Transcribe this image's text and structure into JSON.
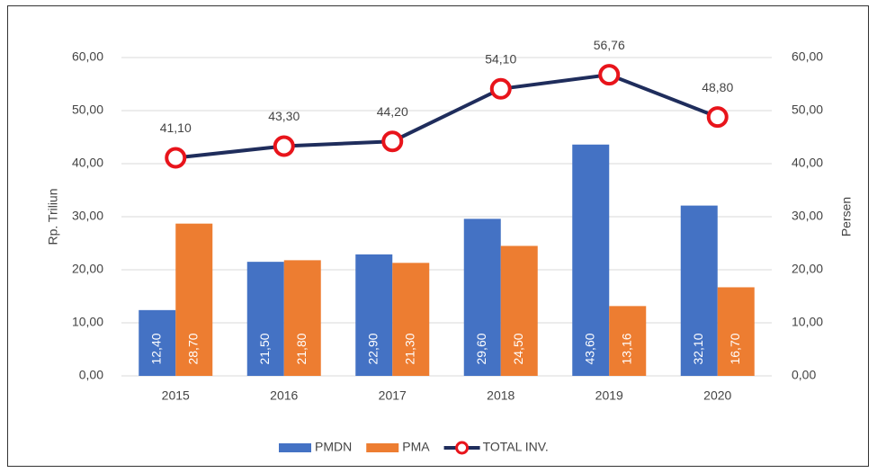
{
  "chart_data": {
    "type": "bar",
    "categories": [
      "2015",
      "2016",
      "2017",
      "2018",
      "2019",
      "2020"
    ],
    "series": [
      {
        "name": "PMDN",
        "type": "bar",
        "color": "#4472c4",
        "values": [
          12.4,
          21.5,
          22.9,
          29.6,
          43.6,
          32.1
        ],
        "value_labels": [
          "12,40",
          "21,50",
          "22,90",
          "29,60",
          "43,60",
          "32,10"
        ]
      },
      {
        "name": "PMA",
        "type": "bar",
        "color": "#ed7d31",
        "values": [
          28.7,
          21.8,
          21.3,
          24.5,
          13.16,
          16.7
        ],
        "value_labels": [
          "28,70",
          "21,80",
          "21,30",
          "24,50",
          "13,16",
          "16,70"
        ]
      },
      {
        "name": "TOTAL INV.",
        "type": "line",
        "color": "#1f2d5c",
        "marker_color": "#e8141b",
        "values": [
          41.1,
          43.3,
          44.2,
          54.1,
          56.76,
          48.8
        ],
        "value_labels": [
          "41,10",
          "43,30",
          "44,20",
          "54,10",
          "56,76",
          "48,80"
        ]
      }
    ],
    "ylabel": "Rp. Triliun",
    "y2label": "Persen",
    "ylim": [
      0,
      60
    ],
    "yticks": [
      {
        "value": 0,
        "label": "0,00"
      },
      {
        "value": 10,
        "label": "10,00"
      },
      {
        "value": 20,
        "label": "20,00"
      },
      {
        "value": 30,
        "label": "30,00"
      },
      {
        "value": 40,
        "label": "40,00"
      },
      {
        "value": 50,
        "label": "50,00"
      },
      {
        "value": 60,
        "label": "60,00"
      }
    ],
    "y2lim": [
      0,
      60
    ],
    "y2ticks": [
      {
        "value": 0,
        "label": "0,00"
      },
      {
        "value": 10,
        "label": "10,00"
      },
      {
        "value": 20,
        "label": "20,00"
      },
      {
        "value": 30,
        "label": "30,00"
      },
      {
        "value": 40,
        "label": "40,00"
      },
      {
        "value": 50,
        "label": "50,00"
      },
      {
        "value": 60,
        "label": "60,00"
      }
    ],
    "grid": true,
    "legend": "bottom"
  }
}
